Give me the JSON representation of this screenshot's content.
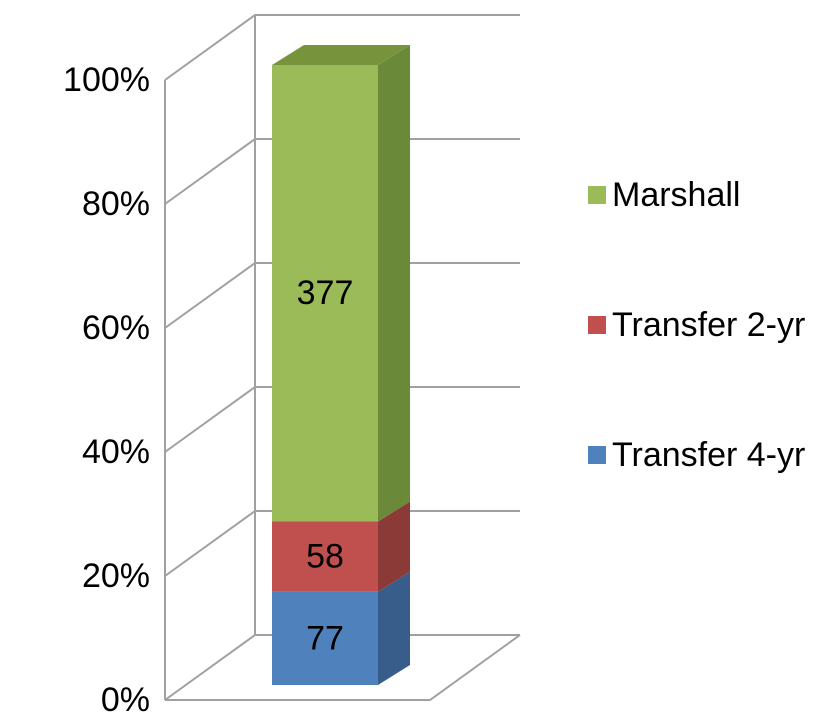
{
  "chart_data": {
    "type": "bar",
    "stacking": "percent",
    "series": [
      {
        "name": "Transfer 4-yr",
        "color": "#4f81bd",
        "side": "#385d8a",
        "values": [
          77
        ]
      },
      {
        "name": "Transfer 2-yr",
        "color": "#c0504d",
        "side": "#8b3a38",
        "values": [
          58
        ]
      },
      {
        "name": "Marshall",
        "color": "#9bbb59",
        "side": "#6a8a3a",
        "values": [
          377
        ]
      }
    ],
    "ylim": [
      0,
      100
    ],
    "yticks": [
      {
        "value": 0,
        "label": "0%"
      },
      {
        "value": 20,
        "label": "20%"
      },
      {
        "value": 40,
        "label": "40%"
      },
      {
        "value": 60,
        "label": "60%"
      },
      {
        "value": 80,
        "label": "80%"
      },
      {
        "value": 100,
        "label": "100%"
      }
    ],
    "grid": true
  }
}
